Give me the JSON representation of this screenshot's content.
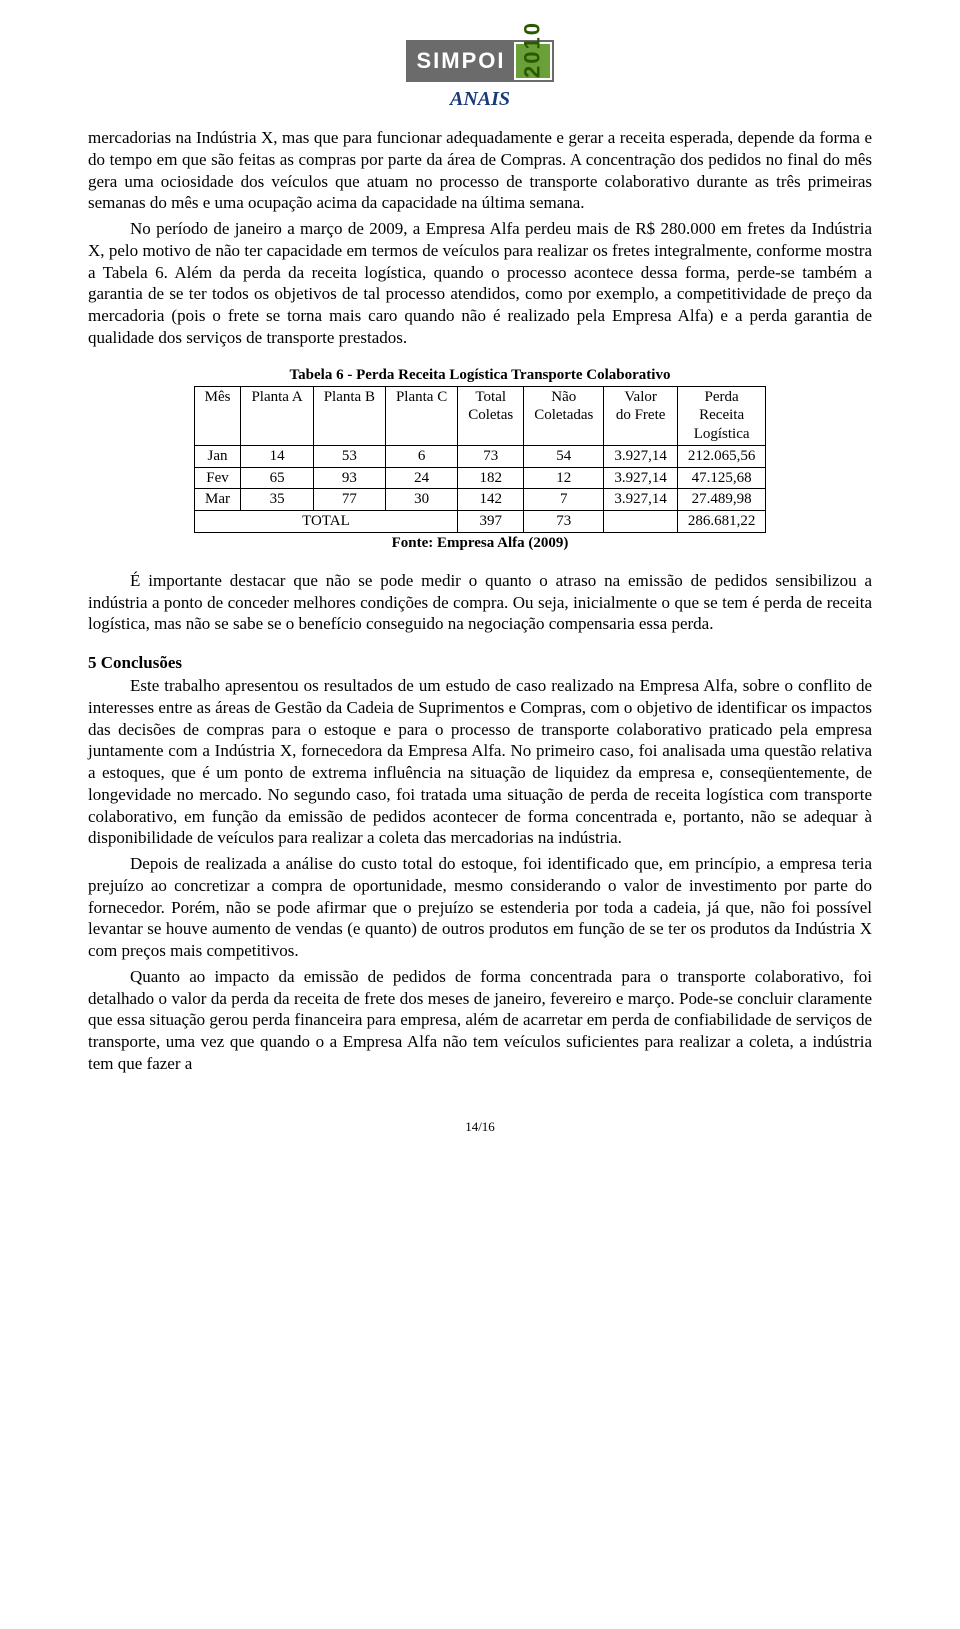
{
  "logo": {
    "brand": "SIMPOI",
    "year": "2010",
    "subtitle": "ANAIS"
  },
  "para1": "mercadorias na Indústria X, mas que para funcionar adequadamente e gerar a receita esperada, depende da forma e do tempo em que são feitas as compras por parte da área de Compras. A concentração dos pedidos no final do mês gera uma ociosidade dos veículos que atuam no processo de transporte colaborativo durante as três primeiras semanas do mês e uma ocupação acima da capacidade na última semana.",
  "para2": "No período de janeiro a março de 2009, a Empresa Alfa perdeu mais de R$ 280.000 em fretes da Indústria X, pelo motivo de não ter capacidade em termos de veículos para realizar os fretes integralmente, conforme mostra a Tabela 6. Além da perda da receita logística, quando o processo acontece dessa forma, perde-se também a garantia de se ter todos os objetivos de tal processo atendidos, como por exemplo, a competitividade de preço da mercadoria (pois o frete se torna mais caro quando não é realizado pela Empresa Alfa) e a perda garantia de qualidade dos serviços de transporte prestados.",
  "table6": {
    "caption": "Tabela 6 - Perda Receita Logística Transporte Colaborativo",
    "headers": {
      "mes": "Mês",
      "pa": "Planta A",
      "pb": "Planta B",
      "pc": "Planta C",
      "tc1": "Total",
      "tc2": "Coletas",
      "nc1": "Não",
      "nc2": "Coletadas",
      "vf1": "Valor",
      "vf2": "do Frete",
      "pr1": "Perda",
      "pr2": "Receita",
      "pr3": "Logística"
    },
    "rows": [
      {
        "mes": "Jan",
        "pa": "14",
        "pb": "53",
        "pc": "6",
        "tc": "73",
        "nc": "54",
        "vf": "3.927,14",
        "pr": "212.065,56"
      },
      {
        "mes": "Fev",
        "pa": "65",
        "pb": "93",
        "pc": "24",
        "tc": "182",
        "nc": "12",
        "vf": "3.927,14",
        "pr": "47.125,68"
      },
      {
        "mes": "Mar",
        "pa": "35",
        "pb": "77",
        "pc": "30",
        "tc": "142",
        "nc": "7",
        "vf": "3.927,14",
        "pr": "27.489,98"
      }
    ],
    "total": {
      "label": "TOTAL",
      "tc": "397",
      "nc": "73",
      "vf": "",
      "pr": "286.681,22"
    },
    "source": "Fonte: Empresa Alfa (2009)"
  },
  "para3": "É importante destacar que não se pode medir o quanto o atraso na emissão de pedidos sensibilizou a indústria a ponto de conceder melhores condições de compra. Ou seja, inicialmente o que se tem é perda de receita logística, mas não se sabe se o benefício conseguido na negociação compensaria essa perda.",
  "section5": {
    "heading": "5 Conclusões",
    "p1": "Este trabalho apresentou os resultados de um estudo de caso realizado na Empresa Alfa, sobre o conflito de interesses entre as áreas de Gestão da Cadeia de Suprimentos e Compras, com o objetivo de identificar os impactos das decisões de compras para o estoque e para o processo de transporte colaborativo praticado pela empresa juntamente com a Indústria X, fornecedora da Empresa Alfa. No primeiro caso, foi analisada uma questão relativa a estoques, que é um ponto de extrema influência na situação de liquidez da empresa e, conseqüentemente, de longevidade no mercado. No segundo caso, foi tratada uma situação de perda de receita logística com transporte colaborativo, em função da emissão de pedidos acontecer de forma concentrada e, portanto, não se adequar à disponibilidade de veículos para realizar a coleta das mercadorias na indústria.",
    "p2": "Depois de realizada a análise do custo total do estoque, foi identificado que, em princípio, a empresa teria prejuízo ao concretizar a compra de oportunidade, mesmo considerando o valor de investimento por parte do fornecedor. Porém, não se pode afirmar que o prejuízo se estenderia por toda a cadeia, já que, não foi possível levantar se houve aumento de vendas (e quanto) de outros produtos em função de se ter os produtos da Indústria X com preços mais competitivos.",
    "p3": "Quanto ao impacto da emissão de pedidos de forma concentrada para o transporte colaborativo, foi detalhado o valor da perda da receita de frete dos meses de janeiro, fevereiro e março. Pode-se concluir claramente que essa situação gerou perda financeira para empresa, além de acarretar em perda de confiabilidade de serviços de transporte, uma vez que quando o a Empresa Alfa não tem veículos suficientes para realizar a coleta, a indústria tem que fazer a"
  },
  "pagenum": "14/16"
}
